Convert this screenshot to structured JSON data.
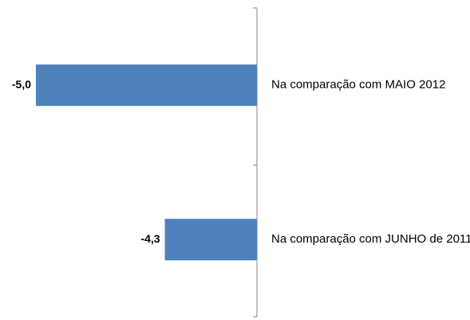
{
  "chart_data": {
    "type": "bar",
    "orientation": "horizontal",
    "categories": [
      "Na comparação com MAIO 2012",
      "Na comparação com JUNHO de 2011"
    ],
    "values": [
      -5.0,
      -4.3
    ],
    "value_labels": [
      "-5,0",
      "-4,3"
    ],
    "color": "#4f81bd",
    "xlim": [
      -5.0,
      -3.8
    ]
  }
}
